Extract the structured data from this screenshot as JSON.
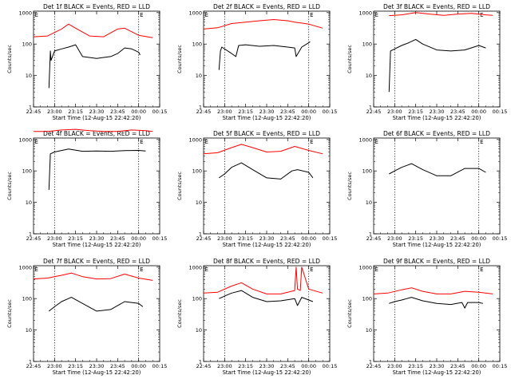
{
  "chart_data": [
    {
      "type": "line",
      "title": "Det 1f BLACK = Events, RED = LLD",
      "xlabel": "Start Time (12-Aug-15 22:42:20)",
      "ylabel": "Counts/sec",
      "yscale": "log",
      "ylim": [
        1,
        1000
      ],
      "yticks": [
        "1",
        "10",
        "100",
        "1000"
      ],
      "xlim": [
        "22:45",
        "00:15"
      ],
      "xticks": [
        "22:45",
        "23:00",
        "23:15",
        "23:30",
        "23:45",
        "00:00",
        "00:15"
      ],
      "markers": [
        "23:00",
        "00:00"
      ],
      "marker_label": "E",
      "series": [
        {
          "color": "#ff0000",
          "x": [
            "22:45",
            "22:55",
            "23:05",
            "23:10",
            "23:15",
            "23:25",
            "23:35",
            "23:45",
            "23:50",
            "24:00",
            "24:10"
          ],
          "y": [
            170,
            180,
            300,
            430,
            320,
            180,
            170,
            300,
            320,
            190,
            160
          ]
        },
        {
          "color": "#000000",
          "x": [
            "22:56",
            "22:57",
            "22:57.5",
            "23:00",
            "23:05",
            "23:10",
            "23:15",
            "23:20",
            "23:30",
            "23:40",
            "23:45",
            "23:50",
            "23:55",
            "24:00",
            "24:01"
          ],
          "y": [
            4,
            60,
            30,
            60,
            70,
            80,
            95,
            40,
            35,
            40,
            50,
            75,
            70,
            55,
            45
          ]
        }
      ]
    },
    {
      "type": "line",
      "title": "Det 2f BLACK = Events, RED = LLD",
      "xlabel": "Start Time (12-Aug-15 22:42:20)",
      "ylabel": "Counts/sec",
      "yscale": "log",
      "ylim": [
        1,
        1000
      ],
      "yticks": [
        "1",
        "10",
        "100",
        "1000"
      ],
      "xlim": [
        "22:45",
        "00:15"
      ],
      "xticks": [
        "22:45",
        "23:00",
        "23:15",
        "23:30",
        "23:45",
        "00:00",
        "00:15"
      ],
      "markers": [
        "23:00",
        "00:00"
      ],
      "marker_label": "E",
      "series": [
        {
          "color": "#ff0000",
          "x": [
            "22:45",
            "22:55",
            "23:05",
            "23:15",
            "23:25",
            "23:35",
            "23:45",
            "23:50",
            "24:00",
            "24:10"
          ],
          "y": [
            300,
            330,
            450,
            500,
            550,
            600,
            550,
            500,
            430,
            320
          ]
        },
        {
          "color": "#000000",
          "x": [
            "22:56",
            "22:57",
            "22:58",
            "23:05",
            "23:08",
            "23:10",
            "23:15",
            "23:25",
            "23:35",
            "23:45",
            "23:50",
            "23:51",
            "23:55",
            "24:00",
            "24:01"
          ],
          "y": [
            15,
            60,
            80,
            50,
            40,
            90,
            95,
            85,
            90,
            80,
            75,
            40,
            80,
            110,
            120
          ]
        }
      ]
    },
    {
      "type": "line",
      "title": "Det 3f BLACK = Events, RED = LLD",
      "xlabel": "Start Time (12-Aug-15 22:42:20)",
      "ylabel": "Counts/sec",
      "yscale": "log",
      "ylim": [
        1,
        1000
      ],
      "yticks": [
        "1",
        "10",
        "100",
        "1000"
      ],
      "xlim": [
        "22:45",
        "00:15"
      ],
      "xticks": [
        "22:45",
        "23:00",
        "23:15",
        "23:30",
        "23:45",
        "00:00",
        "00:15"
      ],
      "markers": [
        "23:00",
        "00:00"
      ],
      "marker_label": "E",
      "series": [
        {
          "color": "#ff0000",
          "x": [
            "22:56",
            "23:05",
            "23:15",
            "23:25",
            "23:35",
            "23:45",
            "23:55",
            "24:05",
            "24:10"
          ],
          "y": [
            800,
            850,
            1000,
            900,
            820,
            900,
            950,
            850,
            820
          ]
        },
        {
          "color": "#000000",
          "x": [
            "22:56",
            "22:57",
            "23:00",
            "23:05",
            "23:10",
            "23:15",
            "23:20",
            "23:30",
            "23:40",
            "23:50",
            "24:00",
            "24:05"
          ],
          "y": [
            3,
            60,
            70,
            90,
            110,
            140,
            100,
            65,
            60,
            65,
            90,
            75
          ]
        }
      ]
    },
    {
      "type": "line",
      "title": "Det 4f BLACK = Events, RED = LLD",
      "xlabel": "Start Time (12-Aug-15 22:42:20)",
      "ylabel": "Counts/sec",
      "yscale": "log",
      "ylim": [
        1,
        1000
      ],
      "yticks": [
        "1",
        "10",
        "100",
        "1000"
      ],
      "xlim": [
        "22:45",
        "00:15"
      ],
      "xticks": [
        "22:45",
        "23:00",
        "23:15",
        "23:30",
        "23:45",
        "00:00",
        "00:15"
      ],
      "markers": [
        "23:00",
        "00:00"
      ],
      "marker_label": "E",
      "series": [
        {
          "color": "#ff0000",
          "x": [
            "22:45",
            "22:55",
            "23:05",
            "23:15",
            "23:25",
            "23:35",
            "23:45",
            "23:55",
            "24:05",
            "24:10"
          ],
          "y": [
            1800,
            1800,
            2000,
            2100,
            1900,
            1800,
            1800,
            2000,
            1900,
            1800
          ]
        },
        {
          "color": "#000000",
          "x": [
            "22:56",
            "22:57",
            "23:00",
            "23:10",
            "23:20",
            "23:30",
            "23:40",
            "23:50",
            "24:00",
            "24:05"
          ],
          "y": [
            25,
            350,
            400,
            500,
            420,
            430,
            420,
            440,
            450,
            430
          ]
        }
      ]
    },
    {
      "type": "line",
      "title": "Det 5f BLACK = Events, RED = LLD",
      "xlabel": "Start Time (12-Aug-15 22:42:20)",
      "ylabel": "Counts/sec",
      "yscale": "log",
      "ylim": [
        1,
        1000
      ],
      "yticks": [
        "1",
        "10",
        "100",
        "1000"
      ],
      "xlim": [
        "22:45",
        "00:15"
      ],
      "xticks": [
        "22:45",
        "23:00",
        "23:15",
        "23:30",
        "23:45",
        "00:00",
        "00:15"
      ],
      "markers": [
        "23:00",
        "00:00"
      ],
      "marker_label": "E",
      "series": [
        {
          "color": "#ff0000",
          "x": [
            "22:45",
            "22:55",
            "23:05",
            "23:12",
            "23:20",
            "23:30",
            "23:40",
            "23:50",
            "24:00",
            "24:10"
          ],
          "y": [
            350,
            380,
            550,
            700,
            550,
            400,
            420,
            600,
            450,
            350
          ]
        },
        {
          "color": "#000000",
          "x": [
            "22:56",
            "23:00",
            "23:05",
            "23:12",
            "23:20",
            "23:30",
            "23:40",
            "23:48",
            "23:52",
            "24:00",
            "24:03"
          ],
          "y": [
            60,
            80,
            130,
            180,
            110,
            60,
            55,
            100,
            110,
            90,
            60
          ]
        }
      ]
    },
    {
      "type": "line",
      "title": "Det 6f BLACK = Events, RED = LLD",
      "xlabel": "Start Time (12-Aug-15 22:42:20)",
      "ylabel": "Counts/sec",
      "yscale": "log",
      "ylim": [
        1,
        1000
      ],
      "yticks": [
        "1",
        "10",
        "100",
        "1000"
      ],
      "xlim": [
        "22:45",
        "00:15"
      ],
      "xticks": [
        "22:45",
        "23:00",
        "23:15",
        "23:30",
        "23:45",
        "00:00",
        "00:15"
      ],
      "markers": [
        "23:00",
        "00:00"
      ],
      "marker_label": "E",
      "series": [
        {
          "color": "#000000",
          "x": [
            "22:56",
            "23:00",
            "23:05",
            "23:12",
            "23:20",
            "23:30",
            "23:40",
            "23:50",
            "24:00",
            "24:05"
          ],
          "y": [
            80,
            100,
            130,
            170,
            110,
            70,
            70,
            120,
            120,
            90
          ]
        }
      ]
    },
    {
      "type": "line",
      "title": "Det 7f BLACK = Events, RED = LLD",
      "xlabel": "Start Time (12-Aug-15 22:42:20)",
      "ylabel": "Counts/sec",
      "yscale": "log",
      "ylim": [
        1,
        1000
      ],
      "yticks": [
        "1",
        "10",
        "100",
        "1000"
      ],
      "xlim": [
        "22:45",
        "00:15"
      ],
      "xticks": [
        "22:45",
        "23:00",
        "23:15",
        "23:30",
        "23:45",
        "00:00",
        "00:15"
      ],
      "markers": [
        "23:00",
        "00:00"
      ],
      "marker_label": "E",
      "series": [
        {
          "color": "#ff0000",
          "x": [
            "22:45",
            "22:55",
            "23:05",
            "23:12",
            "23:20",
            "23:30",
            "23:40",
            "23:50",
            "24:00",
            "24:10"
          ],
          "y": [
            420,
            450,
            550,
            650,
            500,
            420,
            430,
            600,
            450,
            380
          ]
        },
        {
          "color": "#000000",
          "x": [
            "22:56",
            "23:00",
            "23:05",
            "23:12",
            "23:20",
            "23:30",
            "23:40",
            "23:50",
            "24:00",
            "24:03"
          ],
          "y": [
            40,
            55,
            80,
            110,
            70,
            40,
            45,
            80,
            70,
            55
          ]
        }
      ]
    },
    {
      "type": "line",
      "title": "Det 8f BLACK = Events, RED = LLD",
      "xlabel": "Start Time (12-Aug-15 22:42:20)",
      "ylabel": "Counts/sec",
      "yscale": "log",
      "ylim": [
        1,
        1000
      ],
      "yticks": [
        "1",
        "10",
        "100",
        "1000"
      ],
      "xlim": [
        "22:45",
        "00:15"
      ],
      "xticks": [
        "22:45",
        "23:00",
        "23:15",
        "23:30",
        "23:45",
        "00:00",
        "00:15"
      ],
      "markers": [
        "23:00",
        "00:00"
      ],
      "marker_label": "E",
      "series": [
        {
          "color": "#ff0000",
          "x": [
            "22:45",
            "22:55",
            "23:05",
            "23:12",
            "23:20",
            "23:30",
            "23:40",
            "23:50",
            "23:51",
            "23:52",
            "23:54",
            "23:55",
            "24:00",
            "24:10"
          ],
          "y": [
            150,
            160,
            250,
            320,
            200,
            140,
            140,
            180,
            1000,
            200,
            180,
            1000,
            200,
            150
          ]
        },
        {
          "color": "#000000",
          "x": [
            "22:56",
            "23:00",
            "23:05",
            "23:12",
            "23:20",
            "23:30",
            "23:40",
            "23:50",
            "23:52",
            "23:55",
            "24:00",
            "24:03"
          ],
          "y": [
            100,
            120,
            150,
            180,
            110,
            80,
            85,
            100,
            60,
            110,
            90,
            80
          ]
        }
      ]
    },
    {
      "type": "line",
      "title": "Det 9f BLACK = Events, RED = LLD",
      "xlabel": "Start Time (12-Aug-15 22:42:20)",
      "ylabel": "Counts/sec",
      "yscale": "log",
      "ylim": [
        1,
        1000
      ],
      "yticks": [
        "1",
        "10",
        "100",
        "1000"
      ],
      "xlim": [
        "22:45",
        "00:15"
      ],
      "xticks": [
        "22:45",
        "23:00",
        "23:15",
        "23:30",
        "23:45",
        "00:00",
        "00:15"
      ],
      "markers": [
        "23:00",
        "00:00"
      ],
      "marker_label": "E",
      "series": [
        {
          "color": "#ff0000",
          "x": [
            "22:45",
            "22:55",
            "23:05",
            "23:12",
            "23:20",
            "23:30",
            "23:40",
            "23:50",
            "24:00",
            "24:10"
          ],
          "y": [
            140,
            150,
            190,
            220,
            170,
            140,
            140,
            170,
            160,
            140
          ]
        },
        {
          "color": "#000000",
          "x": [
            "22:56",
            "23:00",
            "23:05",
            "23:12",
            "23:20",
            "23:30",
            "23:40",
            "23:48",
            "23:50",
            "23:52",
            "24:00",
            "24:03"
          ],
          "y": [
            70,
            80,
            90,
            110,
            85,
            70,
            65,
            75,
            50,
            75,
            75,
            70
          ]
        }
      ]
    }
  ]
}
